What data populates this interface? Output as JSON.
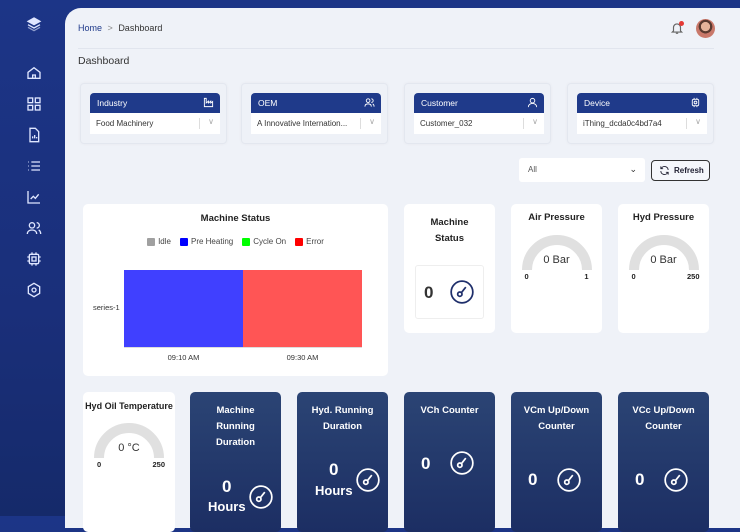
{
  "sidebar": {
    "icons": [
      "layers-logo-icon",
      "home-icon",
      "grid-icon",
      "file-chart-icon",
      "list-icon",
      "line-chart-icon",
      "users-icon",
      "chip-icon",
      "settings-icon"
    ]
  },
  "header": {
    "breadcrumb": {
      "home": "Home",
      "separator": ">",
      "current": "Dashboard"
    },
    "notification_dot_color": "#e53935"
  },
  "page": {
    "title": "Dashboard"
  },
  "filters": [
    {
      "label": "Industry",
      "value": "Food Machinery",
      "icon": "factory-icon"
    },
    {
      "label": "OEM",
      "value": "A Innovative Internation...",
      "icon": "users-icon"
    },
    {
      "label": "Customer",
      "value": "Customer_032",
      "icon": "user-icon"
    },
    {
      "label": "Device",
      "value": "iThing_dcda0c4bd7a4",
      "icon": "chip-icon"
    }
  ],
  "toolbar": {
    "range_value": "All",
    "refresh_label": "Refresh"
  },
  "chart_data": {
    "type": "bar",
    "orientation": "horizontal-timeline",
    "title": "Machine Status",
    "legend": [
      {
        "name": "Idle",
        "color": "#a0a0a0"
      },
      {
        "name": "Pre Heating",
        "color": "#0000ff"
      },
      {
        "name": "Cycle On",
        "color": "#00ff00"
      },
      {
        "name": "Error",
        "color": "#ff0000"
      }
    ],
    "legend_position": "top",
    "categories": [
      "series-1"
    ],
    "segments": [
      {
        "status": "Pre Heating",
        "color": "#4040ff",
        "fraction": 0.5
      },
      {
        "status": "Error",
        "color": "#ff5555",
        "fraction": 0.5
      }
    ],
    "x_ticks": [
      "09:10 AM",
      "09:30 AM"
    ]
  },
  "tiles": {
    "machine_status": {
      "title": "Machine Status",
      "value": "0"
    },
    "air_pressure": {
      "title": "Air Pressure",
      "value": "0 Bar",
      "min": "0",
      "max": "1",
      "level": 0
    },
    "hyd_pressure": {
      "title": "Hyd Pressure",
      "value": "0 Bar",
      "min": "0",
      "max": "250",
      "level": 0
    },
    "hyd_oil_temp": {
      "title": "Hyd Oil Temperature",
      "value": "0 °C",
      "min": "0",
      "max": "250",
      "level": 0
    },
    "machine_running": {
      "title": "Machine Running Duration",
      "value": "0",
      "unit": "Hours"
    },
    "hyd_running": {
      "title": "Hyd. Running Duration",
      "value": "0",
      "unit": "Hours"
    },
    "vch": {
      "title": "VCh Counter",
      "value": "0"
    },
    "vcm": {
      "title": "VCm Up/Down Counter",
      "value": "0"
    },
    "vcc": {
      "title": "VCc Up/Down Counter",
      "value": "0"
    }
  }
}
